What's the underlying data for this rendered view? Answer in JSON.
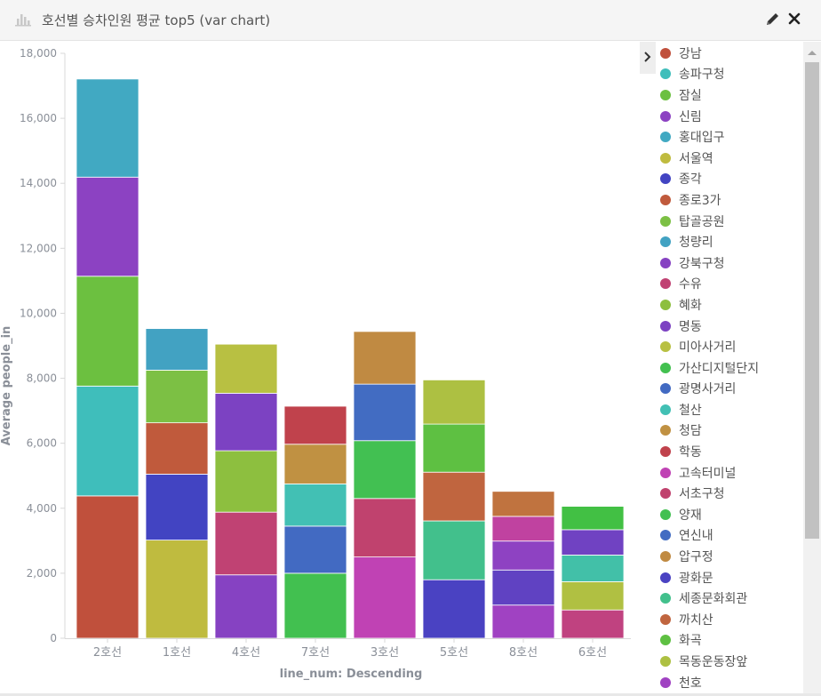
{
  "panel": {
    "title": "호선별 승차인원 평균 top5 (var chart)",
    "icon": "bar-chart-icon",
    "edit_icon": "pencil-icon",
    "close_icon": "close-icon"
  },
  "legend_toggle_icon": "chevron-right-icon",
  "chart_data": {
    "type": "bar",
    "stacked": true,
    "categories": [
      "2호선",
      "1호선",
      "4호선",
      "7호선",
      "3호선",
      "5호선",
      "8호선",
      "6호선"
    ],
    "xlabel": "line_num: Descending",
    "ylabel": "Average people_in",
    "ylim": [
      0,
      18000
    ],
    "yticks": [
      0,
      2000,
      4000,
      6000,
      8000,
      10000,
      12000,
      14000,
      16000,
      18000
    ],
    "ytick_labels": [
      "0",
      "2,000",
      "4,000",
      "6,000",
      "8,000",
      "10,000",
      "12,000",
      "14,000",
      "16,000",
      "18,000"
    ],
    "grid": false,
    "legend_position": "right",
    "series": [
      {
        "name": "강남",
        "color": "#c0503c",
        "values": [
          4380,
          null,
          null,
          null,
          null,
          null,
          null,
          null
        ]
      },
      {
        "name": "송파구청",
        "color": "#3fbebb",
        "values": [
          3380,
          null,
          null,
          null,
          null,
          null,
          null,
          null
        ]
      },
      {
        "name": "잠실",
        "color": "#6cc040",
        "values": [
          3380,
          null,
          null,
          null,
          null,
          null,
          null,
          null
        ]
      },
      {
        "name": "신림",
        "color": "#8c42c2",
        "values": [
          3050,
          null,
          null,
          null,
          null,
          null,
          null,
          null
        ]
      },
      {
        "name": "홍대입구",
        "color": "#41a9c2",
        "values": [
          3020,
          null,
          null,
          null,
          null,
          null,
          null,
          null
        ]
      },
      {
        "name": "서울역",
        "color": "#bfbb3f",
        "values": [
          null,
          3020,
          null,
          null,
          null,
          null,
          null,
          null
        ]
      },
      {
        "name": "종각",
        "color": "#4244c2",
        "values": [
          null,
          2030,
          null,
          null,
          null,
          null,
          null,
          null
        ]
      },
      {
        "name": "종로3가",
        "color": "#c05a3c",
        "values": [
          null,
          1580,
          null,
          null,
          null,
          null,
          null,
          null
        ]
      },
      {
        "name": "탑골공원",
        "color": "#7cc044",
        "values": [
          null,
          1620,
          null,
          null,
          null,
          null,
          null,
          null
        ]
      },
      {
        "name": "청량리",
        "color": "#42a2c2",
        "values": [
          null,
          1280,
          null,
          null,
          null,
          null,
          null,
          null
        ]
      },
      {
        "name": "강북구청",
        "color": "#8642c2",
        "values": [
          null,
          null,
          1950,
          null,
          null,
          null,
          null,
          null
        ]
      },
      {
        "name": "수유",
        "color": "#c04273",
        "values": [
          null,
          null,
          1930,
          null,
          null,
          null,
          null,
          null
        ]
      },
      {
        "name": "혜화",
        "color": "#8dbf3f",
        "values": [
          null,
          null,
          1890,
          null,
          null,
          null,
          null,
          null
        ]
      },
      {
        "name": "명동",
        "color": "#7c42c2",
        "values": [
          null,
          null,
          1770,
          null,
          null,
          null,
          null,
          null
        ]
      },
      {
        "name": "미아사거리",
        "color": "#b8c042",
        "values": [
          null,
          null,
          1510,
          null,
          null,
          null,
          null,
          null
        ]
      },
      {
        "name": "가산디지털단지",
        "color": "#42c050",
        "values": [
          null,
          null,
          null,
          2000,
          null,
          null,
          null,
          null
        ]
      },
      {
        "name": "광명사거리",
        "color": "#426ac2",
        "values": [
          null,
          null,
          null,
          1450,
          null,
          null,
          null,
          null
        ]
      },
      {
        "name": "철산",
        "color": "#42c0b4",
        "values": [
          null,
          null,
          null,
          1300,
          null,
          null,
          null,
          null
        ]
      },
      {
        "name": "청담",
        "color": "#c09142",
        "values": [
          null,
          null,
          null,
          1220,
          null,
          null,
          null,
          null
        ]
      },
      {
        "name": "학동",
        "color": "#c0424c",
        "values": [
          null,
          null,
          null,
          1170,
          null,
          null,
          null,
          null
        ]
      },
      {
        "name": "고속터미널",
        "color": "#c042b4",
        "values": [
          null,
          null,
          null,
          null,
          2500,
          null,
          null,
          null
        ]
      },
      {
        "name": "서초구청",
        "color": "#c0426e",
        "values": [
          null,
          null,
          null,
          null,
          1800,
          null,
          null,
          null
        ]
      },
      {
        "name": "양재",
        "color": "#42c052",
        "values": [
          null,
          null,
          null,
          null,
          1780,
          null,
          null,
          null
        ]
      },
      {
        "name": "연신내",
        "color": "#426cc2",
        "values": [
          null,
          null,
          null,
          null,
          1740,
          null,
          null,
          null
        ]
      },
      {
        "name": "압구정",
        "color": "#c08a42",
        "values": [
          null,
          null,
          null,
          null,
          1620,
          null,
          null,
          null
        ]
      },
      {
        "name": "광화문",
        "color": "#4a42c2",
        "values": [
          null,
          null,
          null,
          null,
          null,
          1800,
          null,
          null
        ]
      },
      {
        "name": "세종문화회관",
        "color": "#42c08c",
        "values": [
          null,
          null,
          null,
          null,
          null,
          1810,
          null,
          null
        ]
      },
      {
        "name": "까치산",
        "color": "#c0653f",
        "values": [
          null,
          null,
          null,
          null,
          null,
          1500,
          null,
          null
        ]
      },
      {
        "name": "화곡",
        "color": "#5ec042",
        "values": [
          null,
          null,
          null,
          null,
          null,
          1480,
          null,
          null
        ]
      },
      {
        "name": "목동운동장앞",
        "color": "#adc042",
        "values": [
          null,
          null,
          null,
          null,
          null,
          1360,
          null,
          null
        ]
      },
      {
        "name": "천호",
        "color": "#a042c2",
        "values": [
          null,
          null,
          null,
          null,
          null,
          null,
          1020,
          null
        ]
      },
      {
        "name": "",
        "color": "#6042c2",
        "values": [
          null,
          null,
          null,
          null,
          null,
          null,
          1080,
          null
        ]
      },
      {
        "name": "",
        "color": "#8e42c2",
        "values": [
          null,
          null,
          null,
          null,
          null,
          null,
          890,
          null
        ]
      },
      {
        "name": "",
        "color": "#c042a0",
        "values": [
          null,
          null,
          null,
          null,
          null,
          null,
          760,
          null
        ]
      },
      {
        "name": "",
        "color": "#c0733f",
        "values": [
          null,
          null,
          null,
          null,
          null,
          null,
          770,
          null
        ]
      },
      {
        "name": "",
        "color": "#c04280",
        "values": [
          null,
          null,
          null,
          null,
          null,
          null,
          null,
          870
        ]
      },
      {
        "name": "",
        "color": "#b0c042",
        "values": [
          null,
          null,
          null,
          null,
          null,
          null,
          null,
          870
        ]
      },
      {
        "name": "",
        "color": "#42c0a8",
        "values": [
          null,
          null,
          null,
          null,
          null,
          null,
          null,
          820
        ]
      },
      {
        "name": "",
        "color": "#7042c2",
        "values": [
          null,
          null,
          null,
          null,
          null,
          null,
          null,
          780
        ]
      },
      {
        "name": "",
        "color": "#42c044",
        "values": [
          null,
          null,
          null,
          null,
          null,
          null,
          null,
          720
        ]
      }
    ]
  }
}
